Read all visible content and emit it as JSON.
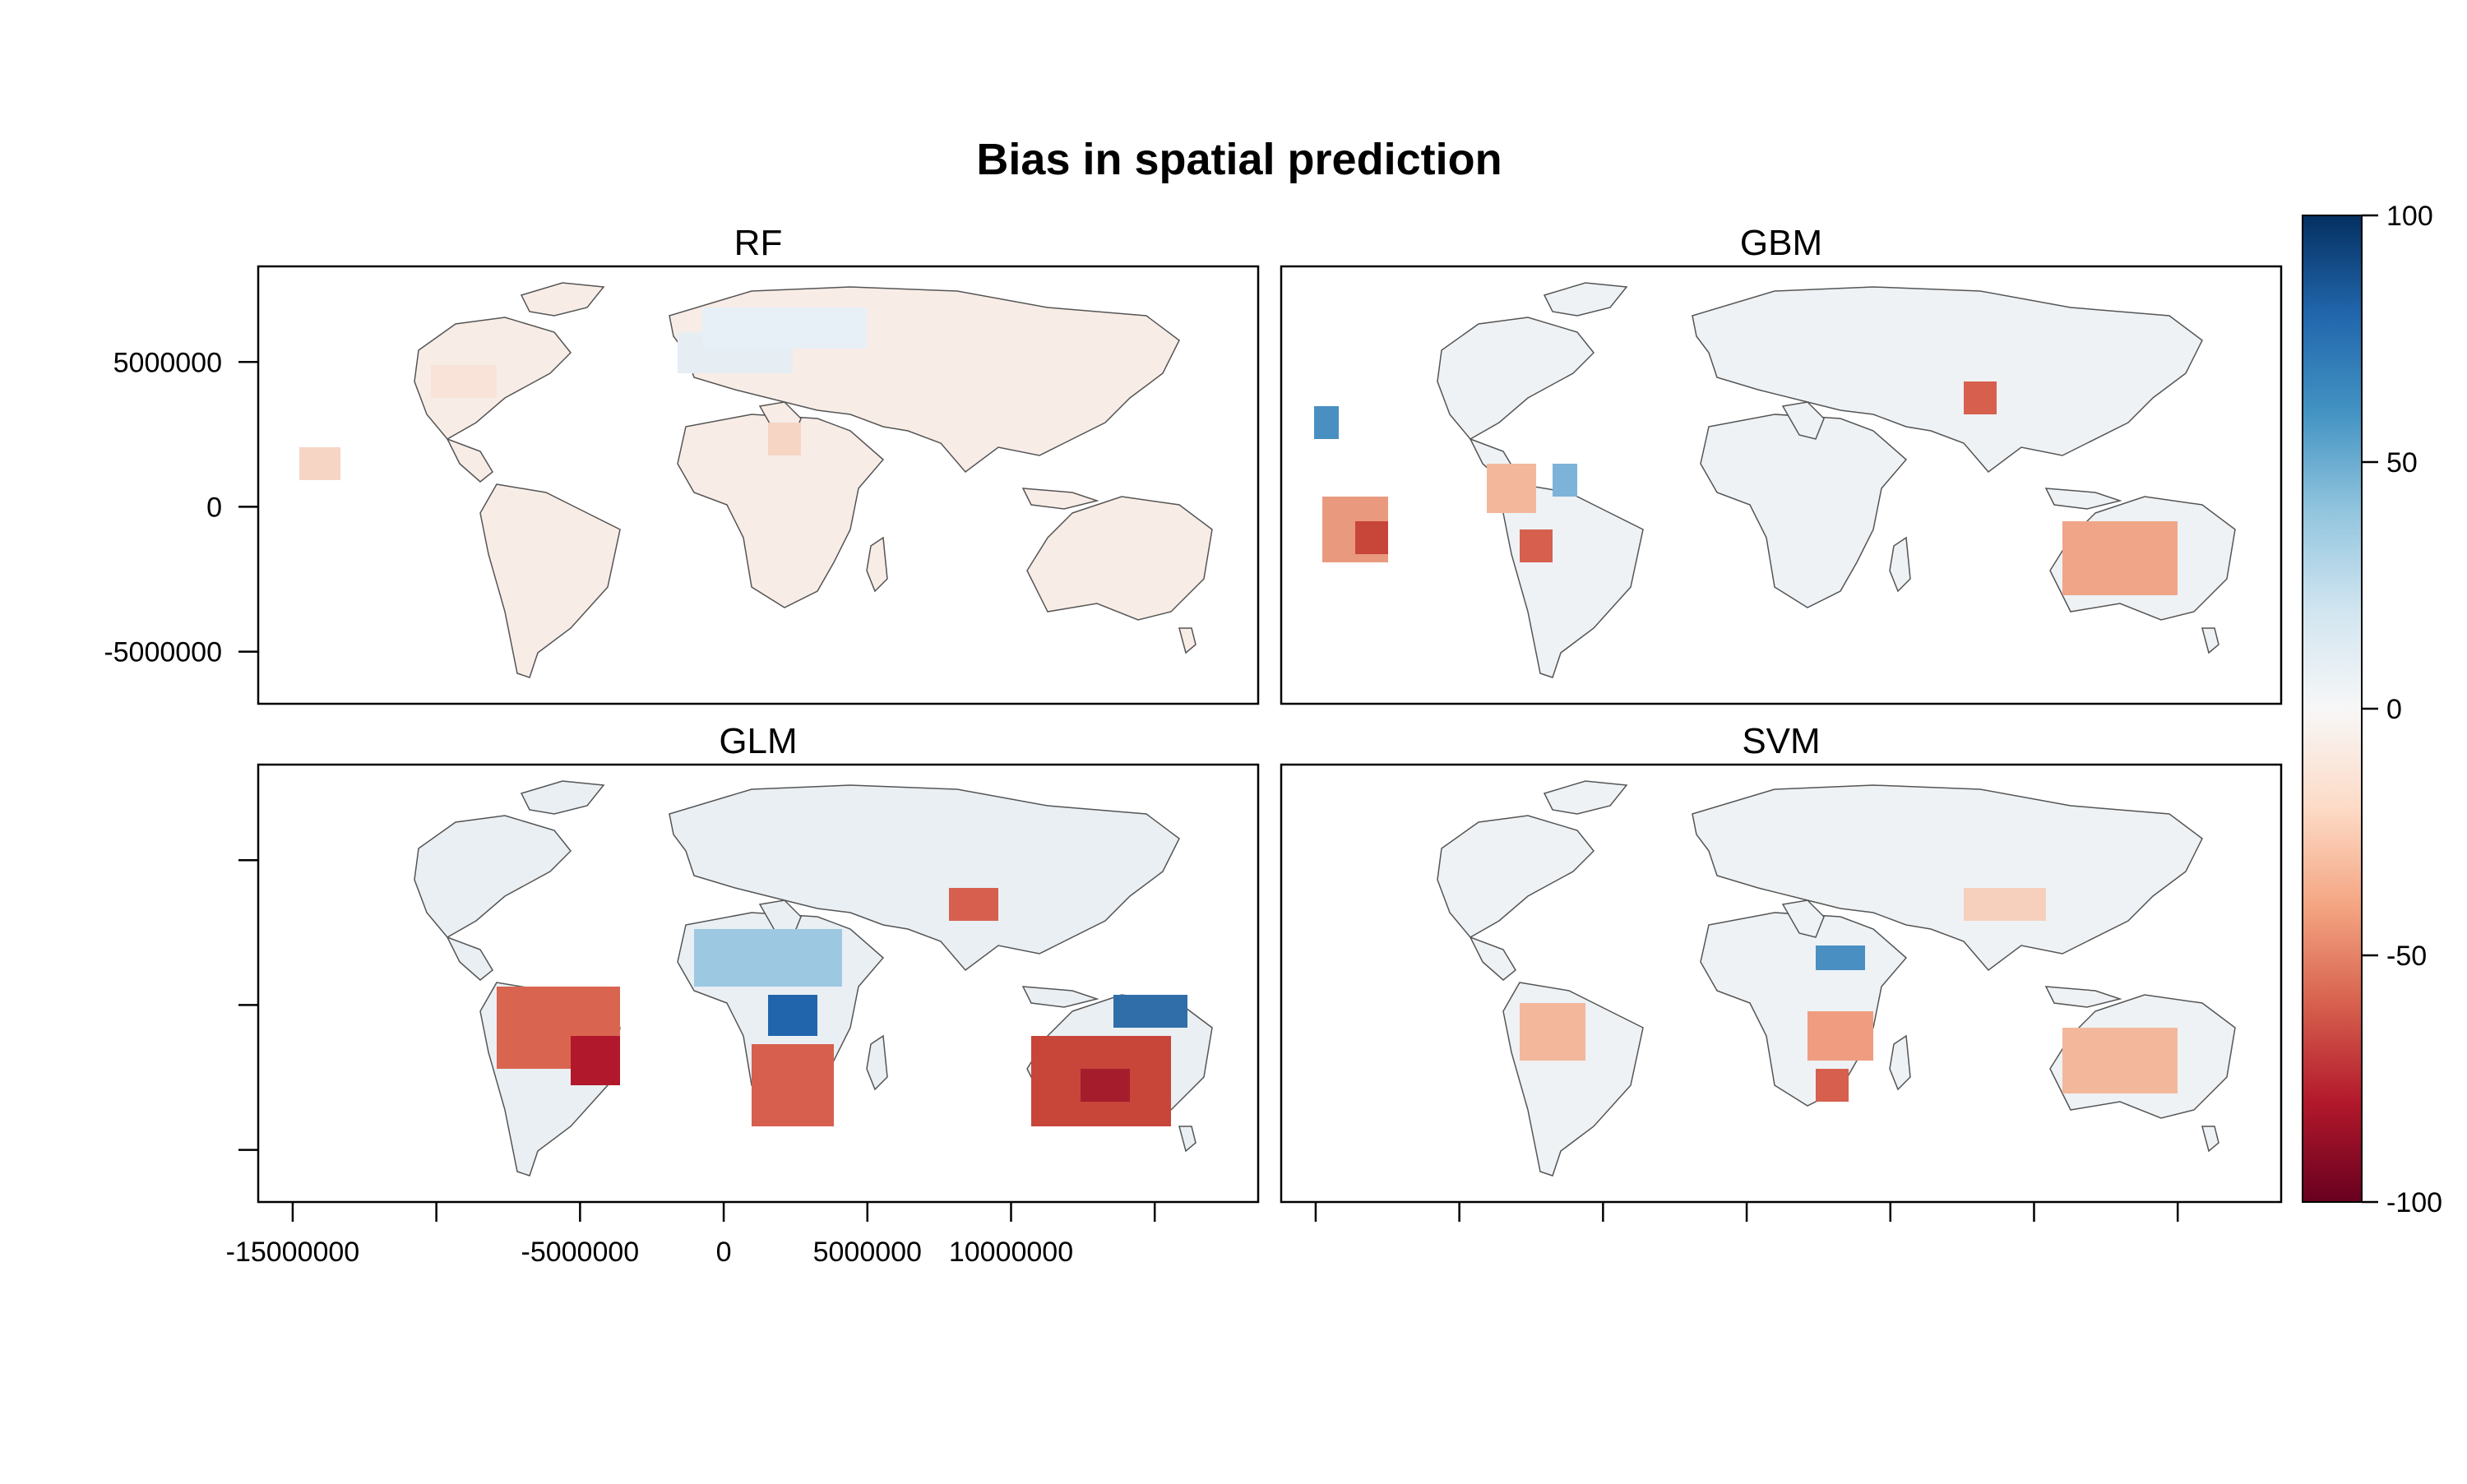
{
  "title": "Bias in spatial prediction",
  "panels": [
    {
      "name": "RF"
    },
    {
      "name": "GBM"
    },
    {
      "name": "GLM"
    },
    {
      "name": "SVM"
    }
  ],
  "y_ticks": [
    {
      "value": 5000000,
      "label": "5000000"
    },
    {
      "value": 0,
      "label": "0"
    },
    {
      "value": -5000000,
      "label": "-5000000"
    }
  ],
  "x_ticks": [
    {
      "value": -15000000,
      "label": "-15000000"
    },
    {
      "value": -10000000,
      "label": ""
    },
    {
      "value": -5000000,
      "label": "-5000000"
    },
    {
      "value": 0,
      "label": "0"
    },
    {
      "value": 5000000,
      "label": "5000000"
    },
    {
      "value": 10000000,
      "label": "10000000"
    },
    {
      "value": 15000000,
      "label": ""
    }
  ],
  "colorbar": {
    "ticks": [
      {
        "value": 100,
        "label": "100"
      },
      {
        "value": 50,
        "label": "50"
      },
      {
        "value": 0,
        "label": "0"
      },
      {
        "value": -50,
        "label": "-50"
      },
      {
        "value": -100,
        "label": "-100"
      }
    ],
    "range": [
      -100,
      100
    ],
    "colors": [
      "#67001f",
      "#b2182b",
      "#d6604d",
      "#f4a582",
      "#fddbc7",
      "#f7f7f7",
      "#d1e5f0",
      "#92c5de",
      "#4393c3",
      "#2166ac",
      "#053061"
    ]
  },
  "map_extent": {
    "x": [
      -16200000,
      18600000
    ],
    "y": [
      -6800000,
      8300000
    ]
  }
}
